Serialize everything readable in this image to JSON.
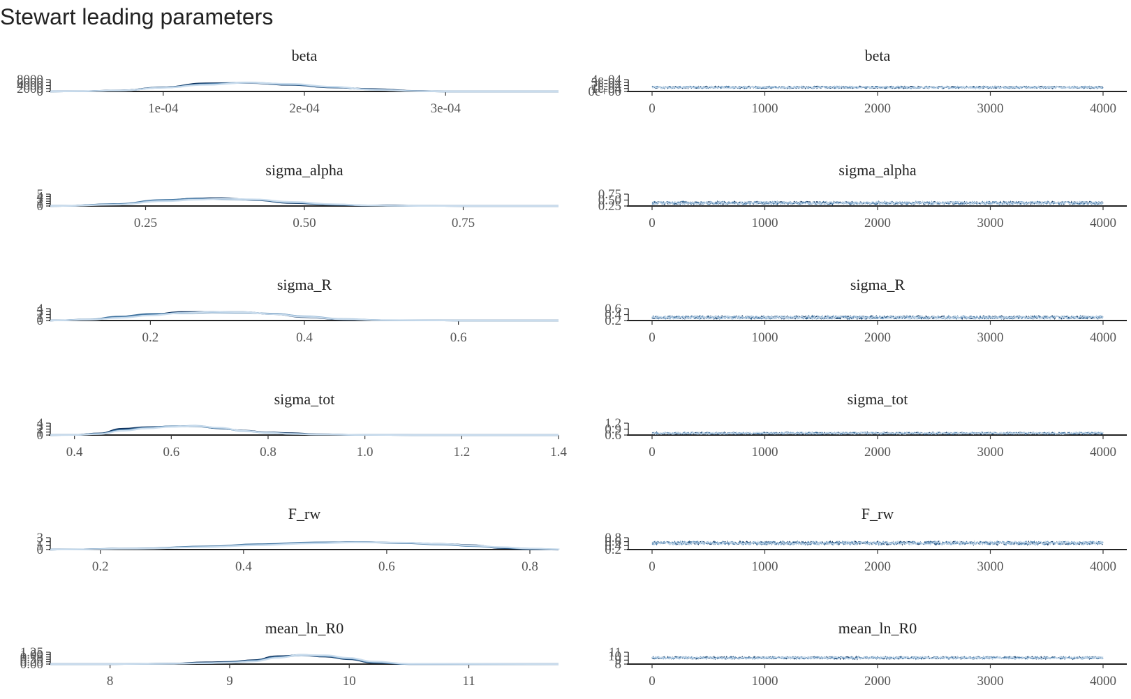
{
  "title": "Stewart leading parameters",
  "colors": [
    "#0b2f5b",
    "#3b6f9c",
    "#7fa8cc",
    "#c9dced"
  ],
  "trace_x_ticks": [
    0,
    1000,
    2000,
    3000,
    4000
  ],
  "chart_data": [
    {
      "type": "area",
      "kind": "density",
      "panel_title": "beta",
      "xlim": [
        2e-05,
        0.00038
      ],
      "ylim": [
        0,
        9000
      ],
      "x_tick_values": [
        0.0001,
        0.0002,
        0.0003
      ],
      "x_tick_labels": [
        "1e-04",
        "2e-04",
        "3e-04"
      ],
      "y_tick_labels": [
        "0",
        "2000",
        "4000",
        "6000",
        "8000"
      ],
      "chains": [
        {
          "x": [
            4e-05,
            7e-05,
            0.0001,
            0.00013,
            0.00016,
            0.00019,
            0.00022,
            0.00025,
            0.00028,
            0.0003
          ],
          "y": [
            150,
            800,
            3200,
            6200,
            6500,
            5000,
            3000,
            1800,
            400,
            0
          ]
        },
        {
          "x": [
            4e-05,
            7e-05,
            0.0001,
            0.00013,
            0.00016,
            0.00019,
            0.00022,
            0.00025,
            0.00028,
            0.0003
          ],
          "y": [
            100,
            700,
            3000,
            5600,
            6700,
            5200,
            3200,
            1500,
            300,
            0
          ]
        },
        {
          "x": [
            4e-05,
            7e-05,
            0.0001,
            0.00013,
            0.00016,
            0.00019,
            0.00022,
            0.00025,
            0.00028,
            0.0003
          ],
          "y": [
            120,
            750,
            2900,
            5300,
            6800,
            5500,
            3400,
            1300,
            250,
            0
          ]
        },
        {
          "x": [
            4e-05,
            7e-05,
            0.0001,
            0.00013,
            0.00016,
            0.00019,
            0.00022,
            0.00025,
            0.00028,
            0.0003
          ],
          "y": [
            90,
            700,
            2800,
            5000,
            6600,
            5800,
            3600,
            1200,
            200,
            0
          ]
        }
      ]
    },
    {
      "type": "line",
      "kind": "trace",
      "panel_title": "beta",
      "xlim": [
        0,
        4000
      ],
      "ylim": [
        0,
        0.00046
      ],
      "y_tick_labels": [
        "0e+00",
        "1e-04",
        "2e-04",
        "3e-04",
        "4e-04"
      ],
      "center": 0.00016,
      "spread": 5e-05
    },
    {
      "type": "area",
      "kind": "density",
      "panel_title": "sigma_alpha",
      "xlim": [
        0.1,
        0.9
      ],
      "ylim": [
        0,
        5.5
      ],
      "x_tick_values": [
        0.25,
        0.5,
        0.75
      ],
      "x_tick_labels": [
        "0.25",
        "0.50",
        "0.75"
      ],
      "y_tick_labels": [
        "0",
        "1",
        "2",
        "3",
        "4",
        "5"
      ],
      "chains": [
        {
          "x": [
            0.12,
            0.2,
            0.28,
            0.33,
            0.37,
            0.42,
            0.48,
            0.55,
            0.6,
            0.63,
            0.68,
            0.75
          ],
          "y": [
            0.05,
            0.8,
            2.6,
            3.5,
            3.7,
            2.8,
            1.4,
            0.5,
            0.2,
            0.35,
            0.05,
            0
          ]
        },
        {
          "x": [
            0.12,
            0.2,
            0.28,
            0.33,
            0.37,
            0.42,
            0.48,
            0.55,
            0.6,
            0.63,
            0.68,
            0.75
          ],
          "y": [
            0.05,
            0.9,
            2.8,
            3.4,
            3.2,
            2.9,
            1.6,
            0.6,
            0.25,
            0.15,
            0.05,
            0
          ]
        },
        {
          "x": [
            0.12,
            0.2,
            0.28,
            0.33,
            0.37,
            0.42,
            0.48,
            0.55,
            0.6,
            0.63,
            0.68,
            0.75
          ],
          "y": [
            0.04,
            0.7,
            2.5,
            3.1,
            3.3,
            3.0,
            1.7,
            0.7,
            0.3,
            0.15,
            0.05,
            0
          ]
        },
        {
          "x": [
            0.12,
            0.2,
            0.28,
            0.33,
            0.37,
            0.42,
            0.48,
            0.55,
            0.6,
            0.63,
            0.68,
            0.75
          ],
          "y": [
            0.03,
            0.6,
            2.2,
            2.9,
            3.4,
            3.1,
            1.9,
            0.8,
            0.3,
            0.15,
            0.05,
            0
          ]
        }
      ]
    },
    {
      "type": "line",
      "kind": "trace",
      "panel_title": "sigma_alpha",
      "xlim": [
        0,
        4000
      ],
      "ylim": [
        0.2,
        0.82
      ],
      "y_tick_labels": [
        "0.25",
        "0.50",
        "0.75"
      ],
      "y_tick_values": [
        0.25,
        0.5,
        0.75
      ],
      "center": 0.36,
      "spread": 0.09
    },
    {
      "type": "area",
      "kind": "density",
      "panel_title": "sigma_R",
      "xlim": [
        0.07,
        0.73
      ],
      "ylim": [
        0,
        4.5
      ],
      "x_tick_values": [
        0.2,
        0.4,
        0.6
      ],
      "x_tick_labels": [
        "0.2",
        "0.4",
        "0.6"
      ],
      "y_tick_labels": [
        "0",
        "1",
        "2",
        "3",
        "4"
      ],
      "chains": [
        {
          "x": [
            0.08,
            0.12,
            0.16,
            0.2,
            0.24,
            0.28,
            0.32,
            0.36,
            0.4,
            0.45,
            0.5,
            0.6
          ],
          "y": [
            0.05,
            0.3,
            1.2,
            2.2,
            3.2,
            3.3,
            3.2,
            2.4,
            1.3,
            0.4,
            0.1,
            0
          ]
        },
        {
          "x": [
            0.08,
            0.12,
            0.16,
            0.2,
            0.24,
            0.28,
            0.32,
            0.36,
            0.4,
            0.45,
            0.5,
            0.6
          ],
          "y": [
            0.05,
            0.4,
            1.5,
            2.5,
            2.7,
            3.1,
            3.0,
            2.6,
            1.5,
            0.5,
            0.1,
            0
          ]
        },
        {
          "x": [
            0.08,
            0.12,
            0.16,
            0.2,
            0.24,
            0.28,
            0.32,
            0.36,
            0.4,
            0.45,
            0.5,
            0.6
          ],
          "y": [
            0.05,
            0.35,
            1.1,
            2.0,
            2.9,
            3.2,
            3.1,
            2.5,
            1.6,
            0.6,
            0.15,
            0
          ]
        },
        {
          "x": [
            0.08,
            0.12,
            0.16,
            0.2,
            0.24,
            0.28,
            0.32,
            0.36,
            0.4,
            0.45,
            0.5,
            0.6
          ],
          "y": [
            0.03,
            0.3,
            1.0,
            1.9,
            2.8,
            3.3,
            3.2,
            2.4,
            1.4,
            0.5,
            0.1,
            0
          ]
        }
      ]
    },
    {
      "type": "line",
      "kind": "trace",
      "panel_title": "sigma_R",
      "xlim": [
        0,
        4000
      ],
      "ylim": [
        0.15,
        0.68
      ],
      "y_tick_labels": [
        "0.2",
        "0.4",
        "0.6"
      ],
      "y_tick_values": [
        0.2,
        0.4,
        0.6
      ],
      "center": 0.29,
      "spread": 0.08
    },
    {
      "type": "area",
      "kind": "density",
      "panel_title": "sigma_tot",
      "xlim": [
        0.35,
        1.4
      ],
      "ylim": [
        0,
        4.5
      ],
      "x_tick_values": [
        0.4,
        0.6,
        0.8,
        1.0,
        1.2,
        1.4
      ],
      "x_tick_labels": [
        "0.4",
        "0.6",
        "0.8",
        "1.0",
        "1.2",
        "1.4"
      ],
      "y_tick_labels": [
        "0",
        "1",
        "2",
        "3",
        "4"
      ],
      "chains": [
        {
          "x": [
            0.4,
            0.45,
            0.5,
            0.55,
            0.6,
            0.65,
            0.7,
            0.75,
            0.8,
            0.85,
            0.9,
            1.0,
            1.1
          ],
          "y": [
            0.05,
            0.6,
            2.4,
            3.0,
            3.2,
            3.4,
            2.5,
            1.7,
            1.0,
            0.7,
            0.3,
            0.05,
            0
          ]
        },
        {
          "x": [
            0.4,
            0.45,
            0.5,
            0.55,
            0.6,
            0.65,
            0.7,
            0.75,
            0.8,
            0.85,
            0.9,
            1.0,
            1.1
          ],
          "y": [
            0.05,
            0.5,
            2.0,
            2.8,
            3.3,
            3.3,
            2.6,
            1.6,
            0.9,
            0.5,
            0.25,
            0.05,
            0
          ]
        },
        {
          "x": [
            0.4,
            0.45,
            0.5,
            0.55,
            0.6,
            0.65,
            0.7,
            0.75,
            0.8,
            0.85,
            0.9,
            1.0,
            1.1
          ],
          "y": [
            0.04,
            0.4,
            1.7,
            2.7,
            3.2,
            3.5,
            2.7,
            1.5,
            0.8,
            0.45,
            0.2,
            0.05,
            0
          ]
        },
        {
          "x": [
            0.4,
            0.45,
            0.5,
            0.55,
            0.6,
            0.65,
            0.7,
            0.75,
            0.8,
            0.85,
            0.9,
            1.0,
            1.1
          ],
          "y": [
            0.03,
            0.35,
            1.6,
            2.5,
            3.1,
            3.4,
            2.8,
            1.6,
            0.85,
            0.4,
            0.2,
            0.05,
            0
          ]
        }
      ]
    },
    {
      "type": "line",
      "kind": "trace",
      "panel_title": "sigma_tot",
      "xlim": [
        0,
        4000
      ],
      "ylim": [
        0.5,
        1.45
      ],
      "y_tick_labels": [
        "0.6",
        "0.9",
        "1.2"
      ],
      "y_tick_values": [
        0.6,
        0.9,
        1.2
      ],
      "center": 0.64,
      "spread": 0.1
    },
    {
      "type": "area",
      "kind": "density",
      "panel_title": "F_rw",
      "xlim": [
        0.13,
        0.84
      ],
      "ylim": [
        0,
        3.8
      ],
      "x_tick_values": [
        0.2,
        0.4,
        0.6,
        0.8
      ],
      "x_tick_labels": [
        "0.2",
        "0.4",
        "0.6",
        "0.8"
      ],
      "y_tick_labels": [
        "0",
        "1",
        "2",
        "3"
      ],
      "chains": [
        {
          "x": [
            0.15,
            0.25,
            0.35,
            0.42,
            0.5,
            0.56,
            0.62,
            0.68,
            0.72,
            0.76,
            0.8,
            0.84
          ],
          "y": [
            0.05,
            0.3,
            0.9,
            1.6,
            2.2,
            2.4,
            2.2,
            1.8,
            1.4,
            0.5,
            0.1,
            0
          ]
        },
        {
          "x": [
            0.15,
            0.25,
            0.35,
            0.42,
            0.5,
            0.56,
            0.62,
            0.68,
            0.72,
            0.76,
            0.8,
            0.84
          ],
          "y": [
            0.04,
            0.35,
            1.0,
            1.7,
            2.3,
            2.35,
            2.1,
            1.6,
            1.1,
            0.6,
            0.2,
            0.05
          ]
        },
        {
          "x": [
            0.15,
            0.25,
            0.35,
            0.42,
            0.5,
            0.56,
            0.62,
            0.68,
            0.72,
            0.76,
            0.8,
            0.84
          ],
          "y": [
            0.05,
            0.3,
            0.85,
            1.5,
            2.1,
            2.4,
            2.2,
            1.7,
            1.2,
            0.7,
            0.3,
            0.1
          ]
        },
        {
          "x": [
            0.15,
            0.25,
            0.35,
            0.42,
            0.5,
            0.56,
            0.62,
            0.68,
            0.72,
            0.76,
            0.8,
            0.84
          ],
          "y": [
            0.03,
            0.25,
            0.8,
            1.4,
            2.0,
            2.3,
            2.25,
            1.8,
            1.3,
            0.8,
            0.35,
            0.1
          ]
        }
      ]
    },
    {
      "type": "line",
      "kind": "trace",
      "panel_title": "F_rw",
      "xlim": [
        0,
        4000
      ],
      "ylim": [
        0.15,
        0.88
      ],
      "y_tick_labels": [
        "0.2",
        "0.4",
        "0.6",
        "0.8"
      ],
      "y_tick_values": [
        0.2,
        0.4,
        0.6,
        0.8
      ],
      "center": 0.55,
      "spread": 0.12
    },
    {
      "type": "area",
      "kind": "density",
      "panel_title": "mean_ln_R0",
      "xlim": [
        7.5,
        11.75
      ],
      "ylim": [
        0,
        1.35
      ],
      "x_tick_values": [
        8,
        9,
        10,
        11
      ],
      "x_tick_labels": [
        "8",
        "9",
        "10",
        "11"
      ],
      "y_tick_labels": [
        "0.00",
        "0.25",
        "0.50",
        "0.75",
        "1.00",
        "1.25"
      ],
      "chains": [
        {
          "x": [
            8.0,
            8.5,
            8.8,
            9.0,
            9.2,
            9.4,
            9.6,
            9.8,
            10.0,
            10.2,
            10.5
          ],
          "y": [
            0.0,
            0.05,
            0.2,
            0.25,
            0.45,
            0.9,
            1.0,
            0.85,
            0.55,
            0.15,
            0.0
          ]
        },
        {
          "x": [
            8.0,
            8.5,
            8.8,
            9.0,
            9.2,
            9.4,
            9.6,
            9.8,
            10.0,
            10.2,
            10.5
          ],
          "y": [
            0.0,
            0.05,
            0.1,
            0.2,
            0.4,
            0.8,
            1.05,
            0.9,
            0.6,
            0.2,
            0.0
          ]
        },
        {
          "x": [
            8.0,
            8.5,
            8.8,
            9.0,
            9.2,
            9.4,
            9.6,
            9.8,
            10.0,
            10.2,
            10.5
          ],
          "y": [
            0.0,
            0.04,
            0.12,
            0.18,
            0.35,
            0.75,
            1.0,
            0.95,
            0.65,
            0.25,
            0.02
          ]
        },
        {
          "x": [
            8.0,
            8.5,
            8.8,
            9.0,
            9.2,
            9.4,
            9.6,
            9.8,
            10.0,
            10.2,
            10.5
          ],
          "y": [
            0.0,
            0.03,
            0.1,
            0.15,
            0.3,
            0.7,
            1.05,
            1.0,
            0.7,
            0.3,
            0.03
          ]
        }
      ]
    },
    {
      "type": "line",
      "kind": "trace",
      "panel_title": "mean_ln_R0",
      "xlim": [
        0,
        4000
      ],
      "ylim": [
        7.6,
        11.4
      ],
      "y_tick_labels": [
        "8",
        "9",
        "10",
        "11"
      ],
      "y_tick_values": [
        8,
        9,
        10,
        11
      ],
      "center": 9.6,
      "spread": 0.45
    }
  ]
}
